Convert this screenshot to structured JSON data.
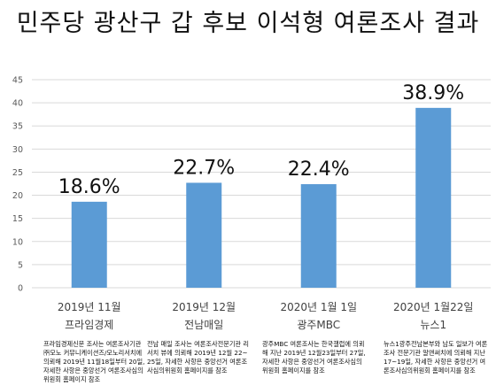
{
  "chart_data": {
    "type": "bar",
    "title": "민주당 광산구 갑 후보 이석형 여론조사 결과",
    "categories": [
      [
        "2019년 11월",
        "프라임경제"
      ],
      [
        "2019년 12월",
        "전남매일"
      ],
      [
        "2020년 1월 1일",
        "광주MBC"
      ],
      [
        "2020년 1월22일",
        "뉴스1"
      ]
    ],
    "values": [
      18.6,
      22.7,
      22.4,
      38.9
    ],
    "data_labels": [
      "18.6%",
      "22.7%",
      "22.4%",
      "38.9%"
    ],
    "ylim": [
      0,
      45
    ],
    "yticks": [
      0,
      5,
      10,
      15,
      20,
      25,
      30,
      35,
      40,
      45
    ],
    "grid": true,
    "bar_color": "#5b9bd5",
    "notes": [
      "프라임경제신문 조사는 여론조사기관 ㈜모노 커뮤니케이션즈/모노리서치에 의뢰해 2019년 11월18일부터 20일, 자세한 사항은 중앙선거 여론조사심의위원회 홈페이지 참조",
      "전남 매일 조사는 여론조사전문기관 리서치 뷰에 의뢰해 2019년 12월 22~25일, 자세한 사항은 중앙선거 여론조사심의위원회 홈페이지를 참조",
      "광주MBC 여론조사는 한국갤럽에 의뢰해 지난 2019년 12월23일부터 27일, 자세한 사항은 중앙선거 여론조사심의위원회 홈페이지를 참조",
      "뉴스1광주전남본부와 남도 일보가 여론조사 전문기관 알앤써치에 의뢰해 지난 17~19일, 자세한 사항은 중앙선거 여론조사심의위원회 홈페이지를 참조"
    ]
  }
}
